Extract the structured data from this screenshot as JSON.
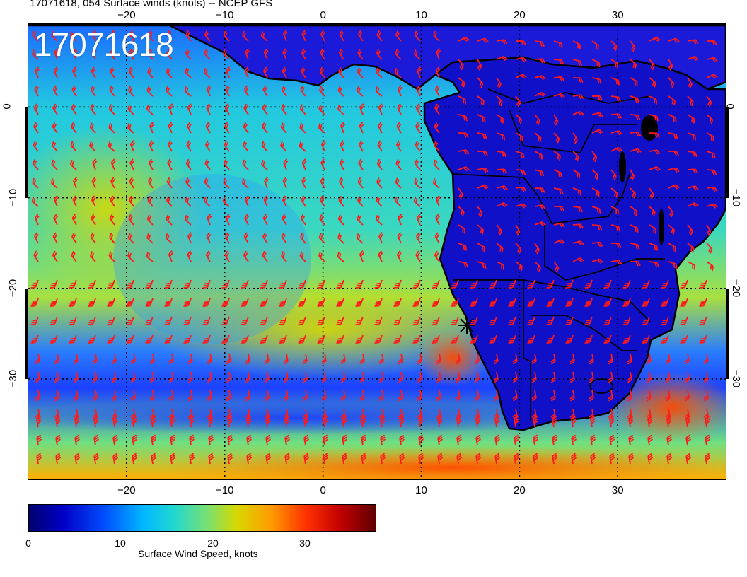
{
  "title": "17071618, 054 Surface winds (knots) -- NCEP GFS",
  "stamp": "17071618",
  "lon_ticks_top": [
    "−20",
    "−10",
    "0",
    "10",
    "20",
    "30"
  ],
  "lon_ticks_bottom": [
    "−20",
    "−10",
    "0",
    "10",
    "20",
    "30"
  ],
  "lat_ticks": [
    "0",
    "−10",
    "−20",
    "−30"
  ],
  "lon_range": [
    -30,
    41
  ],
  "lat_range": [
    9,
    -41
  ],
  "colorbar": {
    "ticks": [
      "0",
      "10",
      "20",
      "30"
    ],
    "label": "Surface Wind Speed, knots",
    "range": [
      0,
      38
    ],
    "colors": [
      "#00006f",
      "#0000c8",
      "#0050ff",
      "#00b8ff",
      "#22d8d0",
      "#7fe06a",
      "#d8d800",
      "#ff9a00",
      "#ff3000",
      "#c00000",
      "#600000"
    ]
  },
  "barb_color": "#ff1a1a",
  "graticule": "dotted",
  "marker": "star-icon"
}
